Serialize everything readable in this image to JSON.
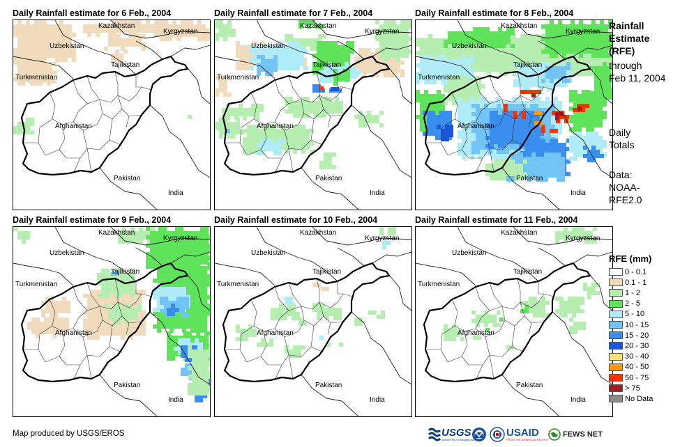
{
  "panels": [
    {
      "title": "Daily Rainfall estimate for 6 Feb., 2004"
    },
    {
      "title": "Daily Rainfall estimate for 7 Feb., 2004"
    },
    {
      "title": "Daily Rainfall estimate for 8 Feb., 2004"
    },
    {
      "title": "Daily Rainfall estimate for 9 Feb., 2004"
    },
    {
      "title": "Daily Rainfall estimate for 10 Feb., 2004"
    },
    {
      "title": "Daily Rainfall estimate for 11 Feb., 2004"
    }
  ],
  "labels": {
    "kazakhstan": "Kazakhstan",
    "kyrgyzstan": "Kyrgyzstan",
    "uzbekistan": "Uzbekistan",
    "tajikistan": "Tajikistan",
    "turkmenistan": "Turkmenistan",
    "afghanistan": "Afghanistan",
    "pakistan": "Pakistan",
    "india": "India"
  },
  "side": {
    "line1": "Rainfall",
    "line2": "Estimate",
    "line3": "(RFE)",
    "line4": "through",
    "line5": "Feb 11, 2004",
    "daily1": "Daily",
    "daily2": "Totals",
    "data1": "Data:",
    "data2": "NOAA-",
    "data3": "RFE2.0"
  },
  "legend": {
    "title": "RFE (mm)",
    "items": [
      {
        "label": "0 - 0.1",
        "color": "#ffffff"
      },
      {
        "label": "0.1 - 1",
        "color": "#f0dcbc"
      },
      {
        "label": "1 - 2",
        "color": "#b5eeb0"
      },
      {
        "label": "2 - 5",
        "color": "#5ee35a"
      },
      {
        "label": "5 - 10",
        "color": "#b0ecf8"
      },
      {
        "label": "10 - 15",
        "color": "#72c4f6"
      },
      {
        "label": "15 - 20",
        "color": "#3a8eef"
      },
      {
        "label": "20 - 30",
        "color": "#1c56d8"
      },
      {
        "label": "30 - 40",
        "color": "#ffe27a"
      },
      {
        "label": "40 - 50",
        "color": "#ff9b00"
      },
      {
        "label": "50 - 75",
        "color": "#ff3300"
      },
      {
        "label": "> 75",
        "color": "#a8181c"
      },
      {
        "label": "No Data",
        "color": "#8c8c8c"
      }
    ]
  },
  "credit": "Map produced by USGS/EROS",
  "logos": {
    "usgs": "USGS",
    "usgs_tag": "science for a changing world",
    "noaa": "NOAA",
    "usaid": "USAID",
    "usaid_tag": "FROM THE AMERICAN PEOPLE",
    "fewsnet": "FEWS NET"
  },
  "colors": {
    "tan": "#f0dcbc",
    "lightgreen": "#b5eeb0",
    "green": "#5ee35a",
    "lightblue": "#b0ecf8",
    "blue": "#72c4f6",
    "midblue": "#3a8eef",
    "darkblue": "#1c56d8",
    "yellow": "#ffe27a",
    "orange": "#ff9b00",
    "red": "#ff3300",
    "darkred": "#a8181c"
  }
}
